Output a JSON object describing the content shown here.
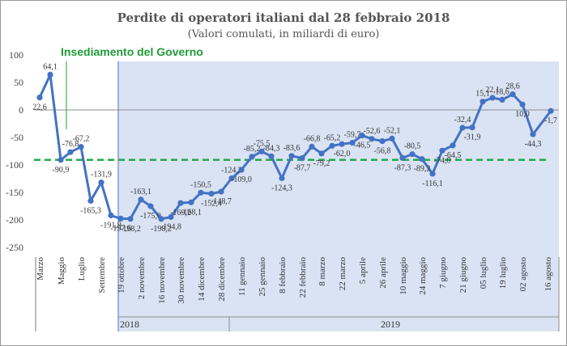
{
  "header": {
    "title": "Perdite di operatori italiani  dal 28 febbraio 2018",
    "subtitle": "(Valori comulati, in miliardi di euro)"
  },
  "annotation": {
    "label": "Insediamento del Governo",
    "color": "#1f9b3a"
  },
  "chart_data": {
    "type": "line",
    "title": "Perdite di operatori italiani  dal 28 febbraio 2018",
    "subtitle": "(Valori comulati, in miliardi di euro)",
    "ylim": [
      -250,
      100
    ],
    "yticks": [
      100,
      50,
      0,
      -50,
      -100,
      -150,
      -200,
      -250
    ],
    "series_color": "#4472c4",
    "shade_color": "#dae3f3",
    "reference_line": {
      "value": -90.9,
      "color": "#1faa4a",
      "style": "dashed"
    },
    "x_labels": [
      "Marzo",
      "Maggio",
      "Luglio",
      "Settembre",
      "19 ottobre",
      "2 novembre",
      "16 novembre",
      "30 novembre",
      "14 dicembre",
      "28 dicembre",
      "11 gennaio",
      "25 gennaio",
      "8 febbraio",
      "22 febbraio",
      "8 marzo",
      "22 marzo",
      "5 aprile",
      "26 aprile",
      "10 maggio",
      "24 maggio",
      "7 giugno",
      "21 giugno",
      "05 luglio",
      "19 luglio",
      "02 agosto",
      "16 agosto"
    ],
    "year_labels": [
      "2018",
      "2019"
    ],
    "values": [
      22.6,
      64.1,
      -90.9,
      -76.8,
      -67.2,
      -165.3,
      -131.9,
      -191.9,
      -197.6,
      -198.2,
      -163.1,
      -175.0,
      -198.2,
      -194.8,
      -169.2,
      -168.1,
      -150.5,
      -152.4,
      -148.7,
      -124.2,
      -109.0,
      -85.2,
      -75.5,
      -84.3,
      -124.3,
      -83.6,
      -87.7,
      -66.8,
      -79.2,
      -65.2,
      -62.0,
      -59.7,
      -46.5,
      -52.6,
      -56.8,
      -52.1,
      -87.3,
      -80.5,
      -89.2,
      -116.1,
      -74.0,
      -64.5,
      -32.4,
      -31.9,
      15.1,
      22.1,
      18.6,
      28.6,
      10.0,
      -44.3,
      -1.7
    ],
    "data_labels": [
      "22,6",
      "64,1",
      "-90,9",
      "-76,8",
      "-67,2",
      "-165,3",
      "-131,9",
      "-191,9",
      "-197,6",
      "-198,2",
      "-163,1",
      "-175,0",
      "-198,2",
      "-194,8",
      "-169,2",
      "-168,1",
      "-150,5",
      "-152,4",
      "-148,7",
      "-124,2",
      "-109,0",
      "-85,2",
      "-75,5",
      "-84,3",
      "-124,3",
      "-83,6",
      "-87,7",
      "-66,8",
      "-79,2",
      "-65,2",
      "-62,0",
      "-59,7",
      "-46,5",
      "-52,6",
      "-56,8",
      "-52,1",
      "-87,3",
      "-80,5",
      "-89,2",
      "-116,1",
      "-74,0",
      "-64,5",
      "-32,4",
      "-31,9",
      "15,1",
      "22,1",
      "18,6",
      "28,6",
      "10,0",
      "-44,3",
      "-1,7"
    ]
  }
}
